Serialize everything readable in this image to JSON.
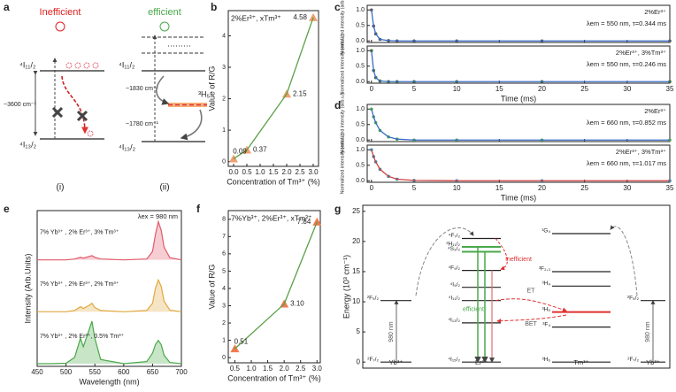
{
  "panel_labels": [
    "a",
    "b",
    "c",
    "d",
    "e",
    "f",
    "g"
  ],
  "diagram_a": {
    "i": {
      "title": "Inefficient",
      "upper": "⁴I₁₁/₂",
      "lower": "⁴I₁₃/₂",
      "gap": "~3600 cm⁻¹",
      "caption": "(i)"
    },
    "ii": {
      "title": "efficient",
      "upper": "⁴I₁₁/₂",
      "lower": "⁴I₁₃/₂",
      "gap_upper": "~1830 cm⁻¹",
      "gap_lower": "~1780 cm⁻¹",
      "level": "³H₅",
      "caption": "(ii)"
    }
  },
  "chart_data": [
    {
      "type": "line",
      "annotation": "2%Er³⁺, xTm³⁺",
      "xlabel": "Concentration of Tm³⁺ (%)",
      "ylabel": "Value of R/G",
      "x": [
        0,
        0.5,
        2,
        3
      ],
      "values": [
        0.09,
        0.37,
        2.15,
        4.58
      ],
      "color": "#5aa046",
      "marker": "triangle",
      "marker_color": "#f0a070",
      "xlim": [
        -0.2,
        3.2
      ],
      "xticks": [
        {
          "value": 0,
          "label": "0.0"
        },
        0.5,
        {
          "value": 1,
          "label": "1.0"
        },
        1.5,
        {
          "value": 2,
          "label": "2.0"
        },
        2.5,
        {
          "value": 3,
          "label": "3.0"
        }
      ],
      "ylim": [
        -0.15,
        4.8
      ],
      "yticks": [
        0,
        1,
        2,
        3,
        4
      ]
    },
    {
      "type": "line",
      "annotation": "7%Yb³⁺, 2%Er³⁺, xTm³⁺",
      "xlabel": "Concentration of Tm³⁺ (%)",
      "ylabel": "Value of R/G",
      "x": [
        0.5,
        2,
        3
      ],
      "values": [
        0.51,
        3.1,
        7.84
      ],
      "value_labels": [
        "0.51",
        "3.10",
        "7.84"
      ],
      "color": "#5aa046",
      "marker": "triangle",
      "marker_color": "#f07a50",
      "xlim": [
        0.3,
        3.1
      ],
      "xticks": [
        0.5,
        {
          "value": 1,
          "label": "1.0"
        },
        1.5,
        {
          "value": 2,
          "label": "2.0"
        },
        2.5,
        {
          "value": 3,
          "label": "3.0"
        }
      ],
      "ylim": [
        -0.3,
        8.5
      ],
      "yticks": [
        0,
        1,
        2,
        3,
        4,
        5,
        6,
        7,
        8
      ]
    },
    {
      "type": "line",
      "annotations": [
        "2%Er³⁺",
        "λem = 550 nm, τ=0.344 ms"
      ],
      "ylabel": "Normalized intensity (arb.u.)",
      "x": [
        0,
        0.25,
        0.5,
        1,
        2,
        3,
        5,
        10,
        20,
        35
      ],
      "series": [
        {
          "color": "#3a6cc8",
          "marker": "circle",
          "marker_color": "#555555",
          "values": [
            1,
            0.48,
            0.23,
            0.05,
            0.01,
            0,
            0,
            0,
            0,
            0
          ]
        }
      ],
      "xlim": [
        -0.5,
        35
      ],
      "xticks": [
        0,
        5,
        10,
        15,
        20,
        25,
        30,
        35
      ],
      "ylim": [
        -0.05,
        1.15
      ],
      "yticks": [
        {
          "value": 0,
          "label": "0.0"
        },
        {
          "value": 0.5,
          "label": "0.5"
        },
        {
          "value": 1,
          "label": "1.0"
        }
      ]
    },
    {
      "type": "line",
      "annotations": [
        "2%Er³⁺, 3%Tm³⁺",
        "λem = 550 nm, τ=0.246 ms"
      ],
      "ylabel": "Normalized intensity (arb.u.)",
      "xlabel": "Time (ms)",
      "x": [
        0,
        0.25,
        0.5,
        1,
        2,
        3,
        5,
        10,
        20,
        35
      ],
      "series": [
        {
          "color": "#3a6cc8",
          "marker": "circle",
          "marker_color": "#3d6b2a",
          "values": [
            1,
            0.36,
            0.13,
            0.02,
            0,
            0,
            0,
            0,
            0,
            0
          ]
        }
      ],
      "xlim": [
        -0.5,
        35
      ],
      "xticks": [
        0,
        5,
        10,
        15,
        20,
        25,
        30,
        35
      ],
      "ylim": [
        -0.05,
        1.15
      ],
      "yticks": [
        {
          "value": 0,
          "label": "0.0"
        },
        {
          "value": 0.5,
          "label": "0.5"
        },
        {
          "value": 1,
          "label": "1.0"
        }
      ]
    },
    {
      "type": "line",
      "annotations": [
        "2%Er³⁺",
        "λem = 660 nm, τ=0.852 ms"
      ],
      "ylabel": "Normalized intensity (arb.u.)",
      "x": [
        0,
        0.25,
        0.5,
        1,
        2,
        3,
        5,
        10,
        20,
        35
      ],
      "series": [
        {
          "color": "#3a6cc8",
          "marker": "circle",
          "marker_color": "#4aa84a",
          "values": [
            1,
            0.75,
            0.56,
            0.31,
            0.1,
            0.03,
            0,
            0,
            0,
            0
          ]
        }
      ],
      "xlim": [
        -0.5,
        35
      ],
      "xticks": [
        0,
        5,
        10,
        15,
        20,
        25,
        30,
        35
      ],
      "ylim": [
        -0.05,
        1.15
      ],
      "yticks": [
        {
          "value": 0,
          "label": "0.0"
        },
        {
          "value": 0.5,
          "label": "0.5"
        },
        {
          "value": 1,
          "label": "1.0"
        }
      ]
    },
    {
      "type": "line",
      "annotations": [
        "2%Er³⁺, 3%Tm³⁺",
        "λem = 660 nm, τ=1.017 ms"
      ],
      "ylabel": "Normalized intensity (arb.u.)",
      "xlabel": "Time (ms)",
      "x": [
        0,
        0.25,
        0.5,
        1,
        2,
        3,
        5,
        10,
        20,
        35
      ],
      "series": [
        {
          "color": "#d04040",
          "marker": "circle",
          "marker_color": "#3a8ab0",
          "values": [
            1,
            0.78,
            0.61,
            0.37,
            0.14,
            0.05,
            0.01,
            0,
            0,
            0
          ]
        }
      ],
      "xlim": [
        -0.5,
        35
      ],
      "xticks": [
        0,
        5,
        10,
        15,
        20,
        25,
        30,
        35
      ],
      "ylim": [
        -0.05,
        1.15
      ],
      "yticks": [
        {
          "value": 0,
          "label": "0.0"
        },
        {
          "value": 0.5,
          "label": "0.5"
        },
        {
          "value": 1,
          "label": "1.0"
        }
      ]
    },
    {
      "type": "spectra",
      "annotation": "λex = 980 nm",
      "xlabel": "Wavelength (nm)",
      "ylabel": "Intensity (Arb.Units)",
      "x": [
        450,
        475,
        500,
        515,
        525,
        530,
        540,
        545,
        550,
        560,
        600,
        640,
        650,
        655,
        660,
        665,
        670,
        680,
        700
      ],
      "series": [
        {
          "name": "7% Yb³⁺ , 2% Er³⁺, 3% Tm³⁺",
          "color": "#e05a6a",
          "values": [
            0,
            0,
            0,
            0.02,
            0.06,
            0.04,
            0.08,
            0.1,
            0.06,
            0.02,
            0,
            0.02,
            0.2,
            0.6,
            0.9,
            0.7,
            0.3,
            0.05,
            0
          ]
        },
        {
          "name": "7% Yb³⁺ , 2% Er³⁺, 2% Tm³⁺",
          "color": "#e0a840",
          "values": [
            0,
            0,
            0,
            0.03,
            0.12,
            0.08,
            0.15,
            0.2,
            0.1,
            0.03,
            0,
            0.03,
            0.2,
            0.55,
            0.75,
            0.6,
            0.25,
            0.04,
            0
          ]
        },
        {
          "name": "7% Yb³⁺ , 2% Er³⁺, 0.5% Tm³⁺",
          "color": "#4aa84a",
          "values": [
            0,
            0,
            0.01,
            0.15,
            0.6,
            0.4,
            0.8,
            1,
            0.6,
            0.1,
            0,
            0.05,
            0.25,
            0.45,
            0.55,
            0.45,
            0.2,
            0.03,
            0
          ]
        }
      ],
      "xlim": [
        450,
        700
      ],
      "xticks": [
        450,
        500,
        550,
        600,
        650,
        700
      ],
      "ylim": [
        0,
        1.1
      ]
    },
    {
      "type": "energy-levels",
      "ylabel": "Energy (10³ cm⁻¹)",
      "ylim": [
        -1,
        26
      ],
      "yticks": [
        0,
        5,
        10,
        15,
        20,
        25
      ],
      "annotations": [
        "980 nm",
        "980 nm",
        "ET",
        "BET",
        "Inefficient",
        "efficient"
      ],
      "ions": [
        {
          "name": "Yb³⁺",
          "levels": [
            {
              "label": "²F₇/₂",
              "value": 0
            },
            {
              "label": "²F₅/₂",
              "value": 10.2
            }
          ]
        },
        {
          "name": "Er³⁺",
          "levels": [
            {
              "label": "⁴I₁₅/₂",
              "value": 0
            },
            {
              "label": "⁴I₁₃/₂",
              "value": 6.5
            },
            {
              "label": "⁴I₁₁/₂",
              "value": 10.2
            },
            {
              "label": "⁴I₉/₂",
              "value": 12.4
            },
            {
              "label": "⁴F₉/₂",
              "value": 15.2
            },
            {
              "label": "⁴S₃/₂",
              "value": 18.3,
              "color": "#4aa84a"
            },
            {
              "label": "²H₁₁/₂",
              "value": 19.1,
              "color": "#4aa84a"
            },
            {
              "label": "⁴F₇/₂",
              "value": 20.5
            }
          ]
        },
        {
          "name": "Tm³⁺",
          "levels": [
            {
              "label": "³H₆",
              "value": 0
            },
            {
              "label": "³F₄",
              "value": 5.8
            },
            {
              "label": "³H₅",
              "value": 8.3,
              "color": "#e03030"
            },
            {
              "label": "³H₄",
              "value": 12.6
            },
            {
              "label": "³F₂,₃",
              "value": 15
            },
            {
              "label": "¹G₄",
              "value": 21.3
            }
          ]
        },
        {
          "name": "Yb³⁺",
          "levels": [
            {
              "label": "²F₇/₂",
              "value": 0
            },
            {
              "label": "²F₅/₂",
              "value": 10.2
            }
          ]
        }
      ]
    }
  ]
}
